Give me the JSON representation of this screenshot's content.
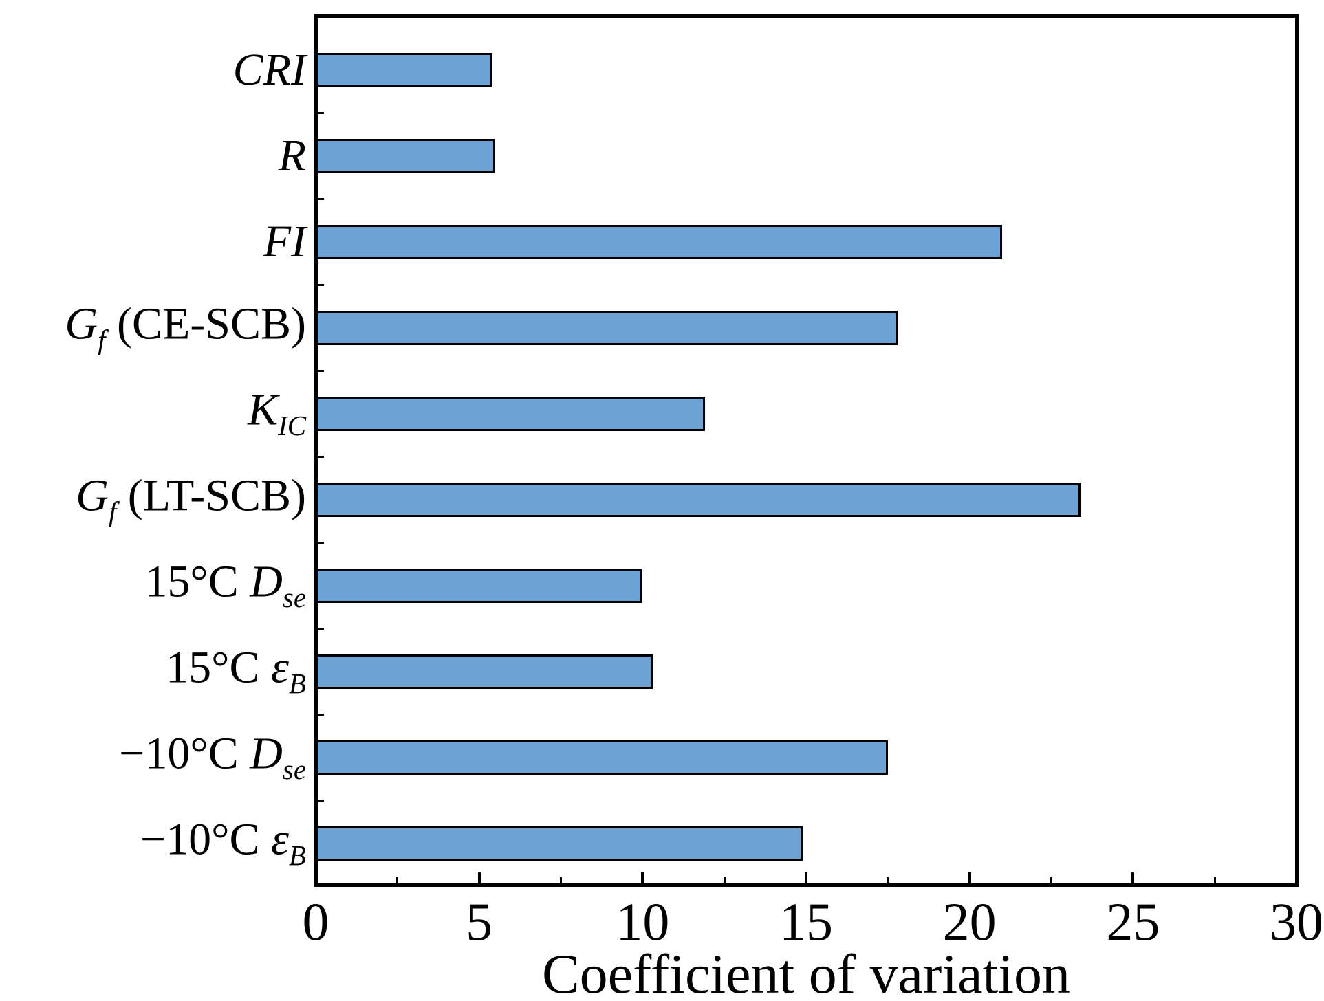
{
  "chart_data": {
    "type": "bar",
    "orientation": "horizontal",
    "title": "",
    "xlabel": "Coefficient of variation",
    "ylabel": "",
    "xlim": [
      0,
      30
    ],
    "x_major_ticks": [
      0,
      5,
      10,
      15,
      20,
      25,
      30
    ],
    "x_minor_tick_step": 2.5,
    "grid": false,
    "legend": null,
    "bar_color": "#6CA2D4",
    "bar_border_color": "#000000",
    "axis_color": "#000000",
    "categories": [
      "CRI",
      "R",
      "FI",
      "Gf (CE-SCB)",
      "KIC",
      "Gf (LT-SCB)",
      "15°C Dse",
      "15°C εB",
      "−10°C Dse",
      "−10°C εB"
    ],
    "category_labels": [
      {
        "name": "cri",
        "parts": [
          {
            "t": "CRI",
            "it": true
          }
        ]
      },
      {
        "name": "r",
        "parts": [
          {
            "t": "R",
            "it": true
          }
        ]
      },
      {
        "name": "fi",
        "parts": [
          {
            "t": "FI",
            "it": true
          }
        ]
      },
      {
        "name": "gf-ce-scb",
        "parts": [
          {
            "t": "G",
            "it": true
          },
          {
            "t": "f",
            "it": true,
            "sub": true
          },
          {
            "t": " (CE-SCB)",
            "it": false
          }
        ]
      },
      {
        "name": "kic",
        "parts": [
          {
            "t": "K",
            "it": true
          },
          {
            "t": "IC",
            "it": true,
            "sub": true
          }
        ]
      },
      {
        "name": "gf-lt-scb",
        "parts": [
          {
            "t": "G",
            "it": true
          },
          {
            "t": "f",
            "it": true,
            "sub": true
          },
          {
            "t": " (LT-SCB)",
            "it": false
          }
        ]
      },
      {
        "name": "15c-dse",
        "parts": [
          {
            "t": "15°C ",
            "it": false
          },
          {
            "t": "D",
            "it": true
          },
          {
            "t": "se",
            "it": true,
            "sub": true
          }
        ]
      },
      {
        "name": "15c-eb",
        "parts": [
          {
            "t": "15°C ",
            "it": false
          },
          {
            "t": "ε",
            "it": true
          },
          {
            "t": "B",
            "it": true,
            "sub": true
          }
        ]
      },
      {
        "name": "minus10c-dse",
        "parts": [
          {
            "t": "−10°C ",
            "it": false
          },
          {
            "t": "D",
            "it": true
          },
          {
            "t": "se",
            "it": true,
            "sub": true
          }
        ]
      },
      {
        "name": "minus10c-eb",
        "parts": [
          {
            "t": "−10°C ",
            "it": false
          },
          {
            "t": "ε",
            "it": true
          },
          {
            "t": "B",
            "it": true,
            "sub": true
          }
        ]
      }
    ],
    "values": [
      5.4,
      5.5,
      21.0,
      17.8,
      11.9,
      23.4,
      10.0,
      10.3,
      17.5,
      14.9
    ]
  }
}
